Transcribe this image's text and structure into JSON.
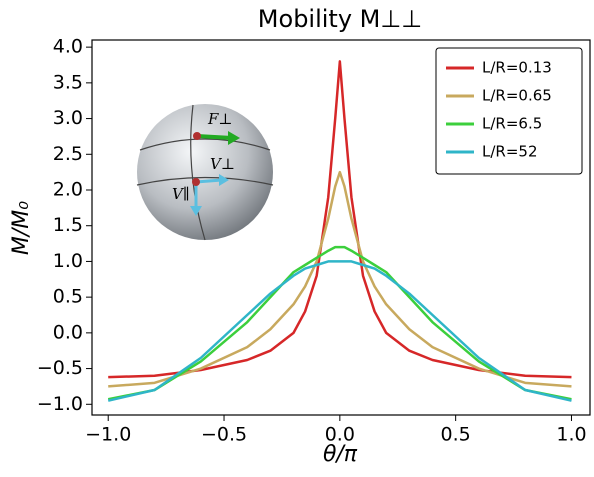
{
  "chart_data": {
    "type": "line",
    "title": "Mobility M⊥⊥",
    "xlabel": "θ/π",
    "ylabel": "M/M₀",
    "x": [
      -1,
      -0.8,
      -0.6,
      -0.4,
      -0.3,
      -0.2,
      -0.15,
      -0.1,
      -0.05,
      -0.02,
      0,
      0.02,
      0.05,
      0.1,
      0.15,
      0.2,
      0.3,
      0.4,
      0.6,
      0.8,
      1
    ],
    "series": [
      {
        "name": "L/R=0.13",
        "color": "#d62728",
        "values": [
          -0.62,
          -0.6,
          -0.52,
          -0.38,
          -0.25,
          0.0,
          0.3,
          0.8,
          1.9,
          3.0,
          3.8,
          3.0,
          1.9,
          0.8,
          0.3,
          0.0,
          -0.25,
          -0.38,
          -0.52,
          -0.6,
          -0.62
        ]
      },
      {
        "name": "L/R=0.65",
        "color": "#c8a95e",
        "values": [
          -0.75,
          -0.7,
          -0.5,
          -0.2,
          0.05,
          0.4,
          0.65,
          1.0,
          1.6,
          2.05,
          2.25,
          2.05,
          1.6,
          1.0,
          0.65,
          0.4,
          0.05,
          -0.2,
          -0.5,
          -0.7,
          -0.75
        ]
      },
      {
        "name": "L/R=6.5",
        "color": "#3ccf3c",
        "values": [
          -0.93,
          -0.8,
          -0.4,
          0.15,
          0.5,
          0.85,
          0.95,
          1.05,
          1.15,
          1.2,
          1.2,
          1.2,
          1.15,
          1.05,
          0.95,
          0.85,
          0.5,
          0.15,
          -0.4,
          -0.8,
          -0.93
        ]
      },
      {
        "name": "L/R=52",
        "color": "#2fb5c8",
        "values": [
          -0.95,
          -0.8,
          -0.35,
          0.25,
          0.55,
          0.8,
          0.9,
          0.95,
          1.0,
          1.0,
          1.0,
          1.0,
          1.0,
          0.95,
          0.9,
          0.8,
          0.55,
          0.25,
          -0.35,
          -0.8,
          -0.95
        ]
      }
    ],
    "xlim": [
      -1.07,
      1.08
    ],
    "ylim": [
      -1.15,
      4.1
    ],
    "xticks": [
      {
        "value": -1,
        "label": "−1.0"
      },
      {
        "value": -0.5,
        "label": "−0.5"
      },
      {
        "value": 0,
        "label": "0.0"
      },
      {
        "value": 0.5,
        "label": "0.5"
      },
      {
        "value": 1,
        "label": "1.0"
      }
    ],
    "yticks": [
      {
        "value": -1,
        "label": "−1.0"
      },
      {
        "value": -0.5,
        "label": "−0.5"
      },
      {
        "value": 0,
        "label": "0.0"
      },
      {
        "value": 0.5,
        "label": "0.5"
      },
      {
        "value": 1,
        "label": "1.0"
      },
      {
        "value": 1.5,
        "label": "1.5"
      },
      {
        "value": 2,
        "label": "2.0"
      },
      {
        "value": 2.5,
        "label": "2.5"
      },
      {
        "value": 3,
        "label": "3.0"
      },
      {
        "value": 3.5,
        "label": "3.5"
      },
      {
        "value": 4,
        "label": "4.0"
      }
    ],
    "legend": "upper right",
    "annotations": [
      "F⊥",
      "V⊥",
      "V∥"
    ]
  }
}
